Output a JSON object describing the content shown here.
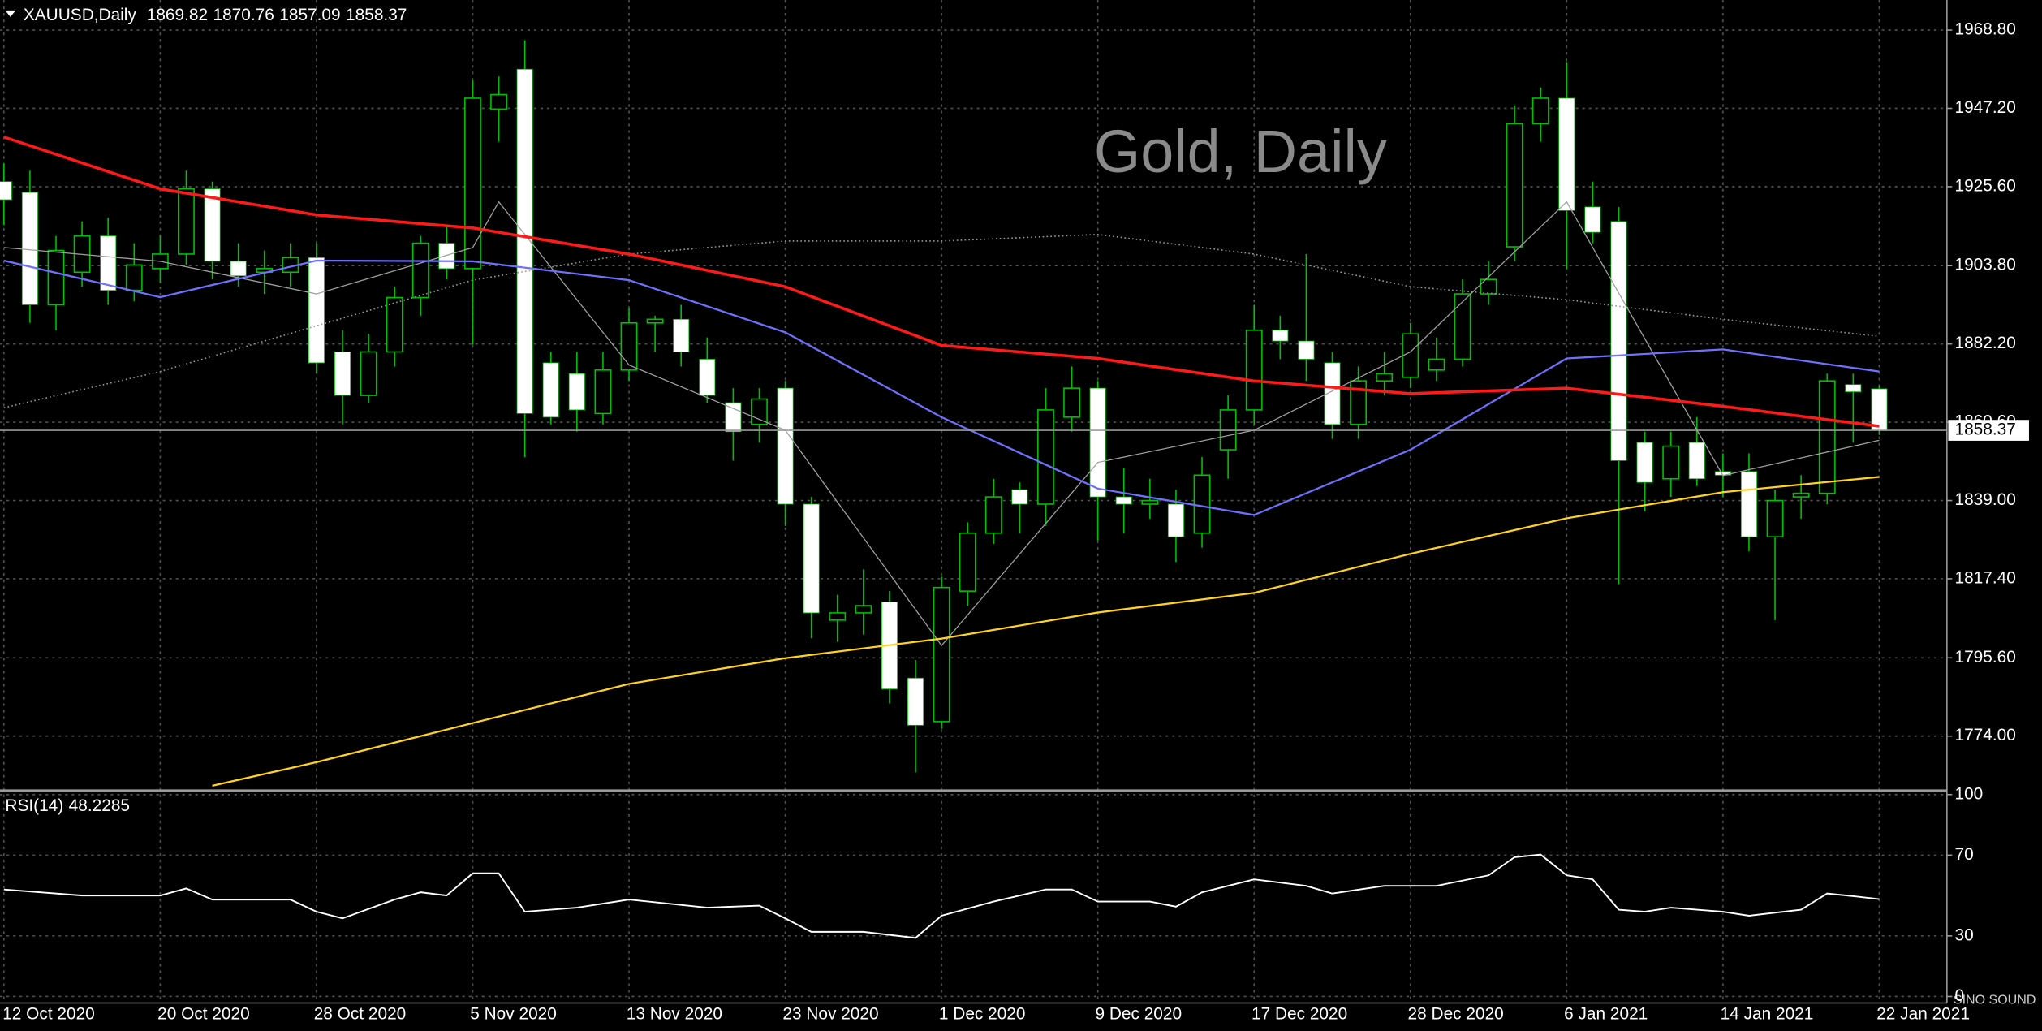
{
  "chart_data": {
    "type": "candlestick",
    "symbol": "XAUUSD,Daily",
    "watermark": "Gold, Daily",
    "logo": "SINO SOUND",
    "categories": [
      "12 Oct 2020",
      null,
      null,
      null,
      null,
      null,
      "20 Oct 2020",
      null,
      null,
      null,
      null,
      null,
      "28 Oct 2020",
      null,
      null,
      null,
      null,
      null,
      "5 Nov 2020",
      null,
      null,
      null,
      null,
      null,
      "13 Nov 2020",
      null,
      null,
      null,
      null,
      null,
      "23 Nov 2020",
      null,
      null,
      null,
      null,
      null,
      "1 Dec 2020",
      null,
      null,
      null,
      null,
      null,
      "9 Dec 2020",
      null,
      null,
      null,
      null,
      null,
      "17 Dec 2020",
      null,
      null,
      null,
      null,
      null,
      "28 Dec 2020",
      null,
      null,
      null,
      null,
      null,
      "6 Jan 2021",
      null,
      null,
      null,
      null,
      null,
      "14 Jan 2021",
      null,
      null,
      null,
      null,
      null,
      "22 Jan 2021"
    ],
    "open": [
      1927,
      1924,
      1893,
      1902,
      1912,
      1897,
      1903,
      1907,
      1925,
      1905,
      1902,
      1902,
      1906,
      1880,
      1868,
      1880,
      1895,
      1910,
      1903,
      1947,
      1958,
      1877,
      1874,
      1863,
      1875,
      1888,
      1889,
      1878,
      1866,
      1860,
      1870,
      1838,
      1806,
      1808,
      1811,
      1790,
      1778,
      1814,
      1830,
      1842,
      1838,
      1862,
      1870,
      1840,
      1838,
      1838,
      1830,
      1853,
      1864,
      1886,
      1883,
      1877,
      1860,
      1872,
      1873,
      1875,
      1878,
      1896,
      1909,
      1943,
      1950,
      1920,
      1916,
      1855,
      1845,
      1855,
      1847,
      1847,
      1829,
      1840,
      1841,
      1871,
      1869.82
    ],
    "high": [
      1932,
      1930,
      1912,
      1916,
      1917,
      1910,
      1912,
      1930,
      1927,
      1910,
      1908,
      1910,
      1910,
      1886,
      1885,
      1898,
      1912,
      1915,
      1955,
      1956,
      1966,
      1880,
      1880,
      1880,
      1892,
      1890,
      1893,
      1884,
      1870,
      1870,
      1872,
      1840,
      1813,
      1820,
      1814,
      1795,
      1818,
      1833,
      1845,
      1844,
      1870,
      1876,
      1872,
      1848,
      1845,
      1842,
      1851,
      1868,
      1893,
      1890,
      1907,
      1880,
      1876,
      1880,
      1888,
      1884,
      1900,
      1905,
      1948,
      1953,
      1960,
      1927,
      1920,
      1858,
      1858,
      1862,
      1852,
      1852,
      1842,
      1846,
      1874,
      1874,
      1870.76
    ],
    "low": [
      1915,
      1888,
      1886,
      1898,
      1893,
      1894,
      1899,
      1904,
      1900,
      1898,
      1896,
      1898,
      1874,
      1860,
      1866,
      1876,
      1890,
      1900,
      1882,
      1938,
      1851,
      1860,
      1858,
      1860,
      1872,
      1880,
      1876,
      1866,
      1850,
      1855,
      1832,
      1801,
      1800,
      1802,
      1783,
      1764,
      1776,
      1810,
      1827,
      1830,
      1832,
      1858,
      1828,
      1830,
      1834,
      1822,
      1826,
      1845,
      1860,
      1878,
      1872,
      1856,
      1856,
      1868,
      1870,
      1872,
      1876,
      1893,
      1905,
      1938,
      1903,
      1910,
      1816,
      1836,
      1840,
      1843,
      1840,
      1825,
      1806,
      1834,
      1838,
      1855,
      1857.09
    ],
    "close": [
      1922,
      1893,
      1908,
      1912,
      1897,
      1904,
      1907,
      1925,
      1905,
      1901,
      1903,
      1906,
      1877,
      1868,
      1880,
      1895,
      1910,
      1903,
      1950,
      1951,
      1863,
      1862,
      1864,
      1875,
      1888,
      1889,
      1880,
      1868,
      1858,
      1867,
      1838,
      1808,
      1808,
      1810,
      1787,
      1777,
      1815,
      1830,
      1840,
      1838,
      1864,
      1870,
      1840,
      1838,
      1839,
      1829,
      1846,
      1864,
      1886,
      1883,
      1878,
      1860,
      1872,
      1874,
      1885,
      1878,
      1896,
      1900,
      1943,
      1950,
      1919,
      1913,
      1850,
      1844,
      1854,
      1845,
      1846,
      1829,
      1839,
      1841,
      1872,
      1869,
      1858.37
    ],
    "up_color": "#000000",
    "down_color": "#ffffff",
    "wick_color": "#00c000",
    "ylim": [
      1759.3,
      1977.1
    ],
    "yticks": [
      {
        "value": 1968.8,
        "label": "1968.80"
      },
      {
        "value": 1947.2,
        "label": "1947.20"
      },
      {
        "value": 1925.6,
        "label": "1925.60"
      },
      {
        "value": 1903.8,
        "label": "1903.80"
      },
      {
        "value": 1882.2,
        "label": "1882.20"
      },
      {
        "value": 1860.6,
        "label": "1860.60"
      },
      {
        "value": 1839,
        "label": "1839.00"
      },
      {
        "value": 1817.4,
        "label": "1817.40"
      },
      {
        "value": 1795.6,
        "label": "1795.60"
      },
      {
        "value": 1774,
        "label": "1774.00"
      }
    ],
    "grid": true,
    "overlays": [
      {
        "color": "#9a9a9a",
        "style": "dotted",
        "x": [
          0,
          6,
          12,
          18,
          24,
          30,
          36,
          42,
          48,
          54,
          60,
          66,
          72
        ],
        "values": [
          1864.6,
          1874.6,
          1887.2,
          1899.8,
          1907,
          1910.6,
          1910.6,
          1912.4,
          1907,
          1898,
          1894.4,
          1889,
          1884.3
        ]
      },
      {
        "color": "#a0a0a0",
        "style": "thin",
        "x": [
          0,
          6,
          12,
          18,
          19,
          24,
          30,
          36,
          42,
          48,
          54,
          60,
          66,
          72
        ],
        "values": [
          1908.8,
          1905,
          1896,
          1908.8,
          1921.4,
          1876.4,
          1858.4,
          1799,
          1849.5,
          1858.4,
          1880,
          1921.4,
          1845.9,
          1855.6
        ]
      },
      {
        "color": "#ffd21e",
        "style": "solid",
        "x": [
          8,
          12,
          18,
          24,
          30,
          36,
          42,
          48,
          54,
          60,
          66,
          72
        ],
        "values": [
          1760.3,
          1766.8,
          1777.6,
          1788.4,
          1795.5,
          1800.9,
          1808.1,
          1813.5,
          1824.3,
          1834.1,
          1841.3,
          1845.5
        ]
      },
      {
        "color": "#7070ff",
        "style": "solid",
        "x": [
          0,
          6,
          12,
          18,
          24,
          30,
          36,
          42,
          48,
          54,
          60,
          66,
          72
        ],
        "values": [
          1905.2,
          1895.1,
          1905.2,
          1905,
          1899.8,
          1885.4,
          1862,
          1842.3,
          1835,
          1853,
          1878.2,
          1880.7,
          1874.6
        ]
      },
      {
        "color": "#ff1a1a",
        "style": "thick",
        "x": [
          0,
          6,
          12,
          18,
          24,
          30,
          36,
          42,
          48,
          54,
          60,
          66,
          72
        ],
        "values": [
          1939.3,
          1925,
          1917.8,
          1914.2,
          1907,
          1898,
          1881.8,
          1878.2,
          1872,
          1868.5,
          1870,
          1865,
          1859.5
        ]
      }
    ],
    "rsi": {
      "label": "RSI(14)",
      "color": "#ffffff",
      "ylim": [
        0,
        100
      ],
      "yticks": [
        100,
        70,
        30,
        0
      ],
      "x": [
        0,
        3,
        6,
        7,
        8,
        11,
        12,
        13,
        15,
        16,
        17,
        18,
        19,
        20,
        22,
        24,
        27,
        29,
        30,
        31,
        33,
        35,
        36,
        38,
        40,
        41,
        42,
        44,
        45,
        46,
        48,
        50,
        51,
        53,
        55,
        57,
        58,
        59,
        60,
        61,
        62,
        63,
        64,
        66,
        67,
        69,
        70,
        71,
        72
      ],
      "values": [
        53,
        50,
        50,
        53.5,
        48,
        48,
        42,
        38.7,
        48,
        51.6,
        50,
        61,
        61,
        42,
        44,
        48,
        44,
        45,
        38.7,
        32,
        32,
        29,
        40,
        47,
        53,
        53,
        47,
        47,
        44.5,
        51.6,
        58,
        54.8,
        51,
        54.8,
        54.8,
        60,
        69,
        70.3,
        60,
        58,
        43,
        42,
        44,
        42,
        40,
        43,
        51,
        49.7,
        48.2285
      ]
    }
  }
}
